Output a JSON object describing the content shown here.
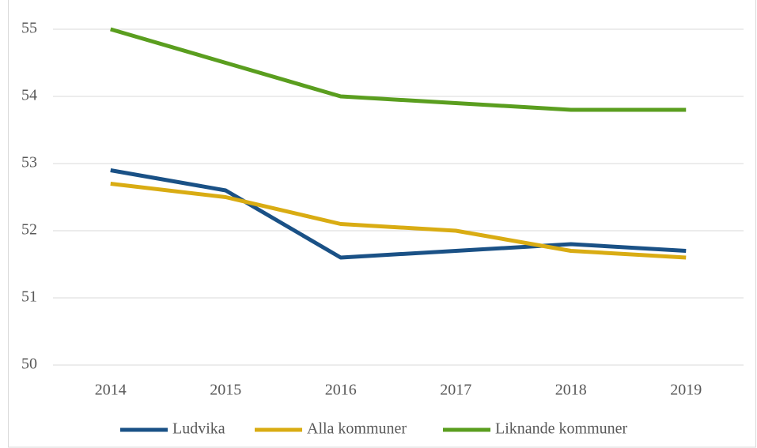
{
  "chart_data": {
    "type": "line",
    "categories": [
      "2014",
      "2015",
      "2016",
      "2017",
      "2018",
      "2019"
    ],
    "series": [
      {
        "name": "Ludvika",
        "color": "#1a5186",
        "values": [
          52.9,
          52.6,
          51.6,
          51.7,
          51.8,
          51.7
        ]
      },
      {
        "name": "Alla kommuner",
        "color": "#d9ac13",
        "values": [
          52.7,
          52.5,
          52.1,
          52.0,
          51.7,
          51.6
        ]
      },
      {
        "name": "Liknande kommuner",
        "color": "#5a9e1f",
        "values": [
          55.0,
          54.5,
          54.0,
          53.9,
          53.8,
          53.8
        ]
      }
    ],
    "ylim": [
      50,
      55
    ],
    "yticks": [
      50,
      51,
      52,
      53,
      54,
      55
    ],
    "grid": true,
    "legend": "bottom"
  }
}
